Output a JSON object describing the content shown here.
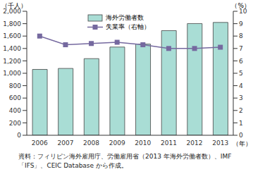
{
  "chart_data": {
    "type": "bar",
    "y_label": "（千人）",
    "y2_label": "（%）",
    "x_label": "（年）",
    "source": "資料：フィリピン海外雇用庁、労働雇用省（2013 年海外労働者数）、IMF「IFS」、CEIC Database から作成。",
    "categories": [
      "2006",
      "2007",
      "2008",
      "2009",
      "2010",
      "2011",
      "2012",
      "2013"
    ],
    "series": [
      {
        "name": "海外労働者数",
        "type": "bar",
        "color": "#a9ddd5",
        "values": [
          1062,
          1078,
          1236,
          1423,
          1471,
          1688,
          1802,
          1820
        ]
      },
      {
        "name": "失業率（右軸）",
        "type": "line",
        "axis": "y2",
        "color": "#75699f",
        "marker": "square",
        "values": [
          8.0,
          7.3,
          7.4,
          7.5,
          7.3,
          7.0,
          7.0,
          7.1
        ]
      }
    ],
    "ylim": [
      0,
      2000
    ],
    "yticks": [
      0,
      200,
      400,
      600,
      800,
      {
        "value": 1000,
        "label": "1,000"
      },
      {
        "value": 1200,
        "label": "1,200"
      },
      {
        "value": 1400,
        "label": "1,400"
      },
      {
        "value": 1600,
        "label": "1,600"
      },
      {
        "value": 1800,
        "label": "1,800"
      },
      {
        "value": 2000,
        "label": "2,000"
      }
    ],
    "y2lim": [
      0,
      10
    ],
    "y2ticks": [
      0,
      1,
      2,
      3,
      4,
      5,
      6,
      7,
      8,
      9,
      10
    ],
    "grid": false,
    "legend": "top"
  }
}
